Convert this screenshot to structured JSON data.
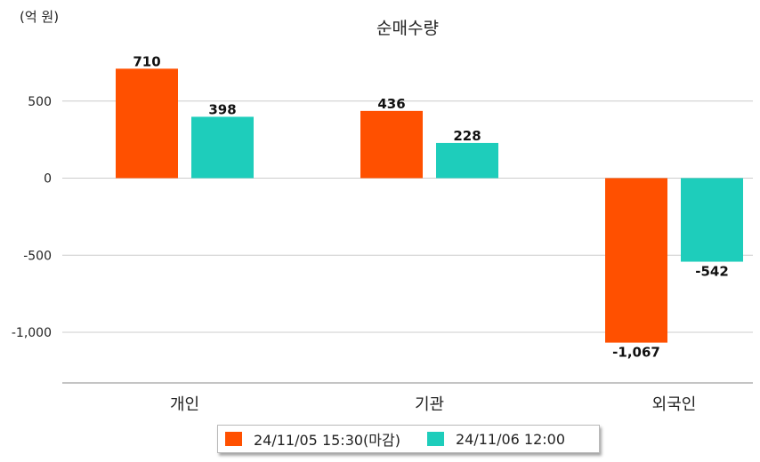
{
  "unit_label": "(억 원)",
  "colors": {
    "series1": "#ff5000",
    "series2": "#1ecdbb",
    "grid": "#cccccc",
    "axis": "#888888",
    "text": "#222222"
  },
  "chart_data": {
    "type": "bar",
    "title": "순매수량",
    "categories": [
      "개인",
      "기관",
      "외국인"
    ],
    "series": [
      {
        "name": "24/11/05 15:30(마감)",
        "values": [
          710,
          436,
          -1067
        ],
        "labels": [
          "710",
          "436",
          "-1,067"
        ]
      },
      {
        "name": "24/11/06 12:00",
        "values": [
          398,
          228,
          -542
        ],
        "labels": [
          "398",
          "228",
          "-542"
        ]
      }
    ],
    "yticks": [
      500,
      0,
      -500,
      -1000
    ],
    "ytick_labels": [
      "500",
      "0",
      "-500",
      "-1,000"
    ],
    "ylim": [
      -1330,
      840
    ],
    "grid": true,
    "legend": "bottom"
  }
}
